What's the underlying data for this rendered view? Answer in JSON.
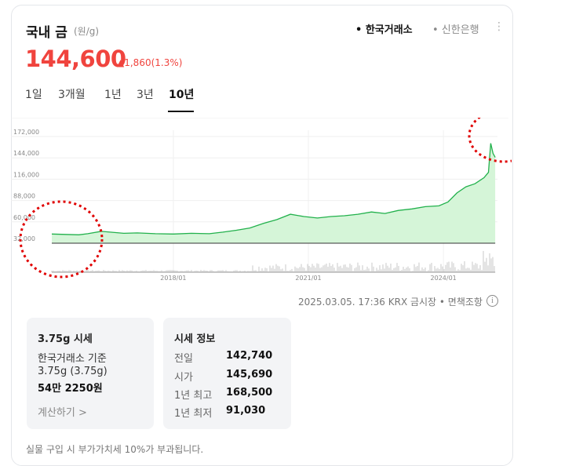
{
  "header": {
    "title": "국내 금",
    "unit": "(원/g)",
    "source_active": "• 한국거래소",
    "source_other": "• 신한은행",
    "menu_icon": "kebab-icon",
    "price": "144,600",
    "change": "▲1,860(1.3%)",
    "price_color": "#f0443e"
  },
  "tabs": [
    "1일",
    "3개월",
    "1년",
    "3년",
    "10년"
  ],
  "active_tab": "10년",
  "asof": "2025.03.05. 17:36 KRX 금시장 • 면책조항",
  "box1": {
    "title": "3.75g 시세",
    "line1": "한국거래소 기준",
    "line2": "3.75g (3.75g)",
    "value": "54만 2250원",
    "link": "계산하기 >"
  },
  "box2": {
    "title": "시세 정보",
    "rows": [
      {
        "label": "전일",
        "value": "142,740"
      },
      {
        "label": "시가",
        "value": "145,690"
      },
      {
        "label": "1년 최고",
        "value": "168,500"
      },
      {
        "label": "1년 최저",
        "value": "91,030"
      }
    ]
  },
  "footnote": "실물 구입 시 부가가치세 10%가 부과됩니다.",
  "chart_data": {
    "type": "area",
    "title": "",
    "xlabel": "",
    "ylabel": "",
    "yticks": [
      "32,000",
      "60,000",
      "88,000",
      "116,000",
      "144,000",
      "172,000"
    ],
    "ylim": [
      32000,
      172000
    ],
    "xticks": [
      {
        "label": "2018/01",
        "x": 2018.0
      },
      {
        "label": "2021/01",
        "x": 2021.0
      },
      {
        "label": "2024/01",
        "x": 2024.0
      }
    ],
    "xlim": [
      2015.3,
      2025.2
    ],
    "line_color": "#22b14c",
    "fill_color": "#d5f5d8",
    "x": [
      2015.3,
      2015.6,
      2015.9,
      2016.1,
      2016.4,
      2016.7,
      2016.9,
      2017.2,
      2017.6,
      2018.0,
      2018.4,
      2018.8,
      2019.1,
      2019.4,
      2019.7,
      2020.0,
      2020.3,
      2020.6,
      2020.9,
      2021.2,
      2021.5,
      2021.8,
      2022.1,
      2022.4,
      2022.7,
      2023.0,
      2023.3,
      2023.6,
      2023.9,
      2024.1,
      2024.3,
      2024.5,
      2024.7,
      2024.9,
      2025.0,
      2025.05,
      2025.1,
      2025.15
    ],
    "values": [
      44000,
      43500,
      43000,
      44500,
      47500,
      46000,
      45000,
      45500,
      44500,
      44000,
      45000,
      44500,
      46500,
      49000,
      52000,
      58000,
      63000,
      70000,
      67000,
      65000,
      67000,
      68000,
      70000,
      73000,
      71000,
      75000,
      77000,
      80000,
      81000,
      86000,
      98000,
      106000,
      110000,
      118000,
      125000,
      163000,
      150000,
      144600
    ],
    "annotations": [
      "dotted-ellipse-left",
      "dotted-ellipse-top-right"
    ]
  }
}
